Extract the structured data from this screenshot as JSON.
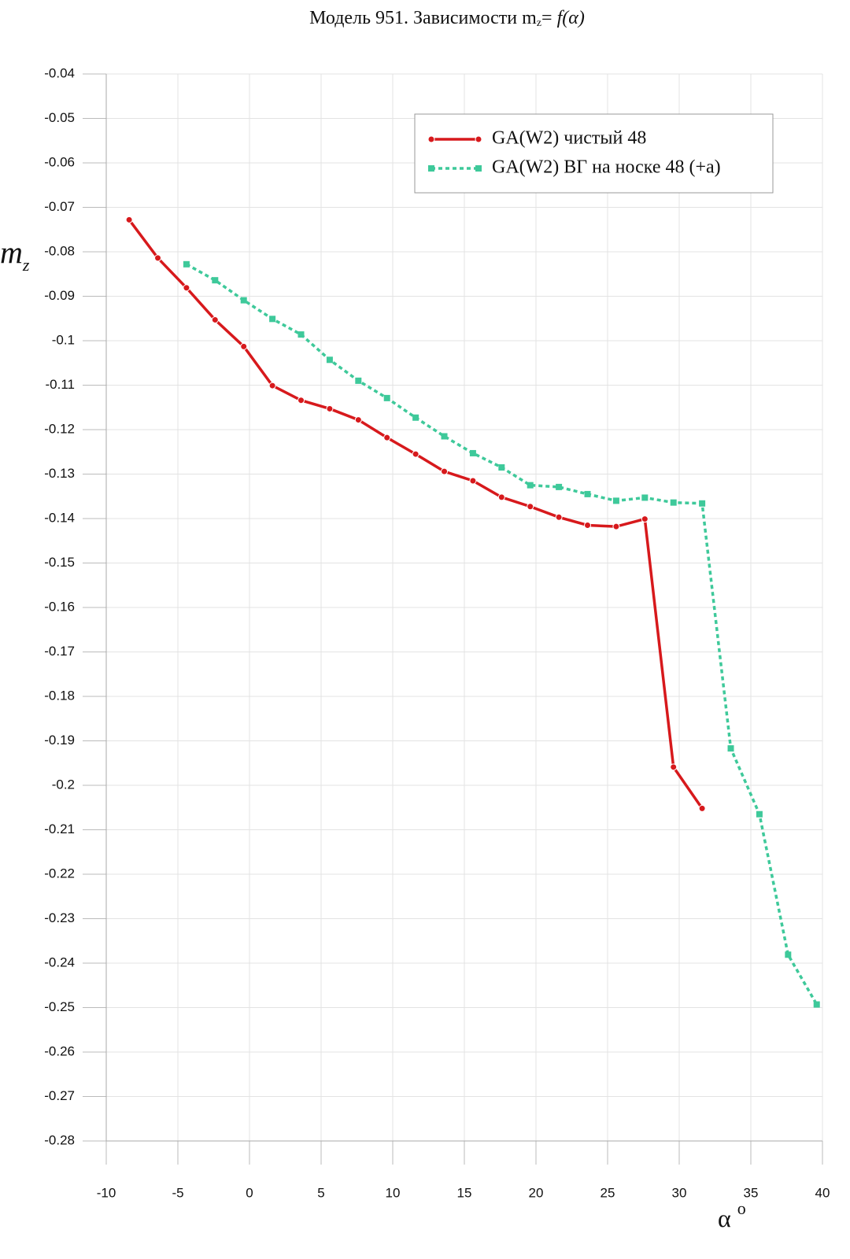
{
  "chart_data": {
    "type": "line",
    "title": "Модель 951. Зависимости m",
    "title_sub": "z",
    "title_tail": "= ",
    "title_func": "f(α)",
    "ylabel": "m",
    "ylabel_sub": "z",
    "xlabel": "α",
    "xlabel_sup": "o",
    "xlim": [
      -10,
      40
    ],
    "xticks": [
      -10,
      -5,
      0,
      5,
      10,
      15,
      20,
      25,
      30,
      35,
      40
    ],
    "ylim": [
      -0.28,
      -0.04
    ],
    "yticks": [
      -0.04,
      -0.05,
      -0.06,
      -0.07,
      -0.08,
      -0.09,
      -0.1,
      -0.11,
      -0.12,
      -0.13,
      -0.14,
      -0.15,
      -0.16,
      -0.17,
      -0.18,
      -0.19,
      -0.2,
      -0.21,
      -0.22,
      -0.23,
      -0.24,
      -0.25,
      -0.26,
      -0.27,
      -0.28
    ],
    "grid": true,
    "legend": "top-right",
    "series": [
      {
        "name": "GA(W2) чистый 48",
        "color": "#d7191c",
        "marker": "circle",
        "dash": "solid",
        "x": [
          -8.4,
          -6.4,
          -4.4,
          -2.4,
          -0.4,
          1.6,
          3.6,
          5.6,
          7.6,
          9.6,
          11.6,
          13.6,
          15.6,
          17.6,
          19.6,
          21.6,
          23.6,
          25.6,
          27.6,
          29.6,
          31.6
        ],
        "values": [
          -0.0728,
          -0.0814,
          -0.0881,
          -0.0953,
          -0.1013,
          -0.1101,
          -0.1134,
          -0.1153,
          -0.1178,
          -0.1218,
          -0.1255,
          -0.1294,
          -0.1315,
          -0.1352,
          -0.1373,
          -0.1397,
          -0.1415,
          -0.1418,
          -0.1401,
          -0.1959,
          -0.2052
        ]
      },
      {
        "name": "GA(W2) ВГ на носке 48 (+a)",
        "color": "#3ec99a",
        "marker": "square",
        "dash": "dotted",
        "x": [
          -4.4,
          -2.4,
          -0.4,
          1.6,
          3.6,
          5.6,
          7.6,
          9.6,
          11.6,
          13.6,
          15.6,
          17.6,
          19.6,
          21.6,
          23.6,
          25.6,
          27.6,
          29.6,
          31.6,
          33.6,
          35.6,
          37.6,
          39.6
        ],
        "values": [
          -0.0828,
          -0.0864,
          -0.0909,
          -0.0951,
          -0.0986,
          -0.1043,
          -0.109,
          -0.1129,
          -0.1173,
          -0.1215,
          -0.1253,
          -0.1285,
          -0.1325,
          -0.1329,
          -0.1345,
          -0.136,
          -0.1353,
          -0.1364,
          -0.1366,
          -0.1917,
          -0.2065,
          -0.2381,
          -0.2493
        ]
      }
    ]
  }
}
